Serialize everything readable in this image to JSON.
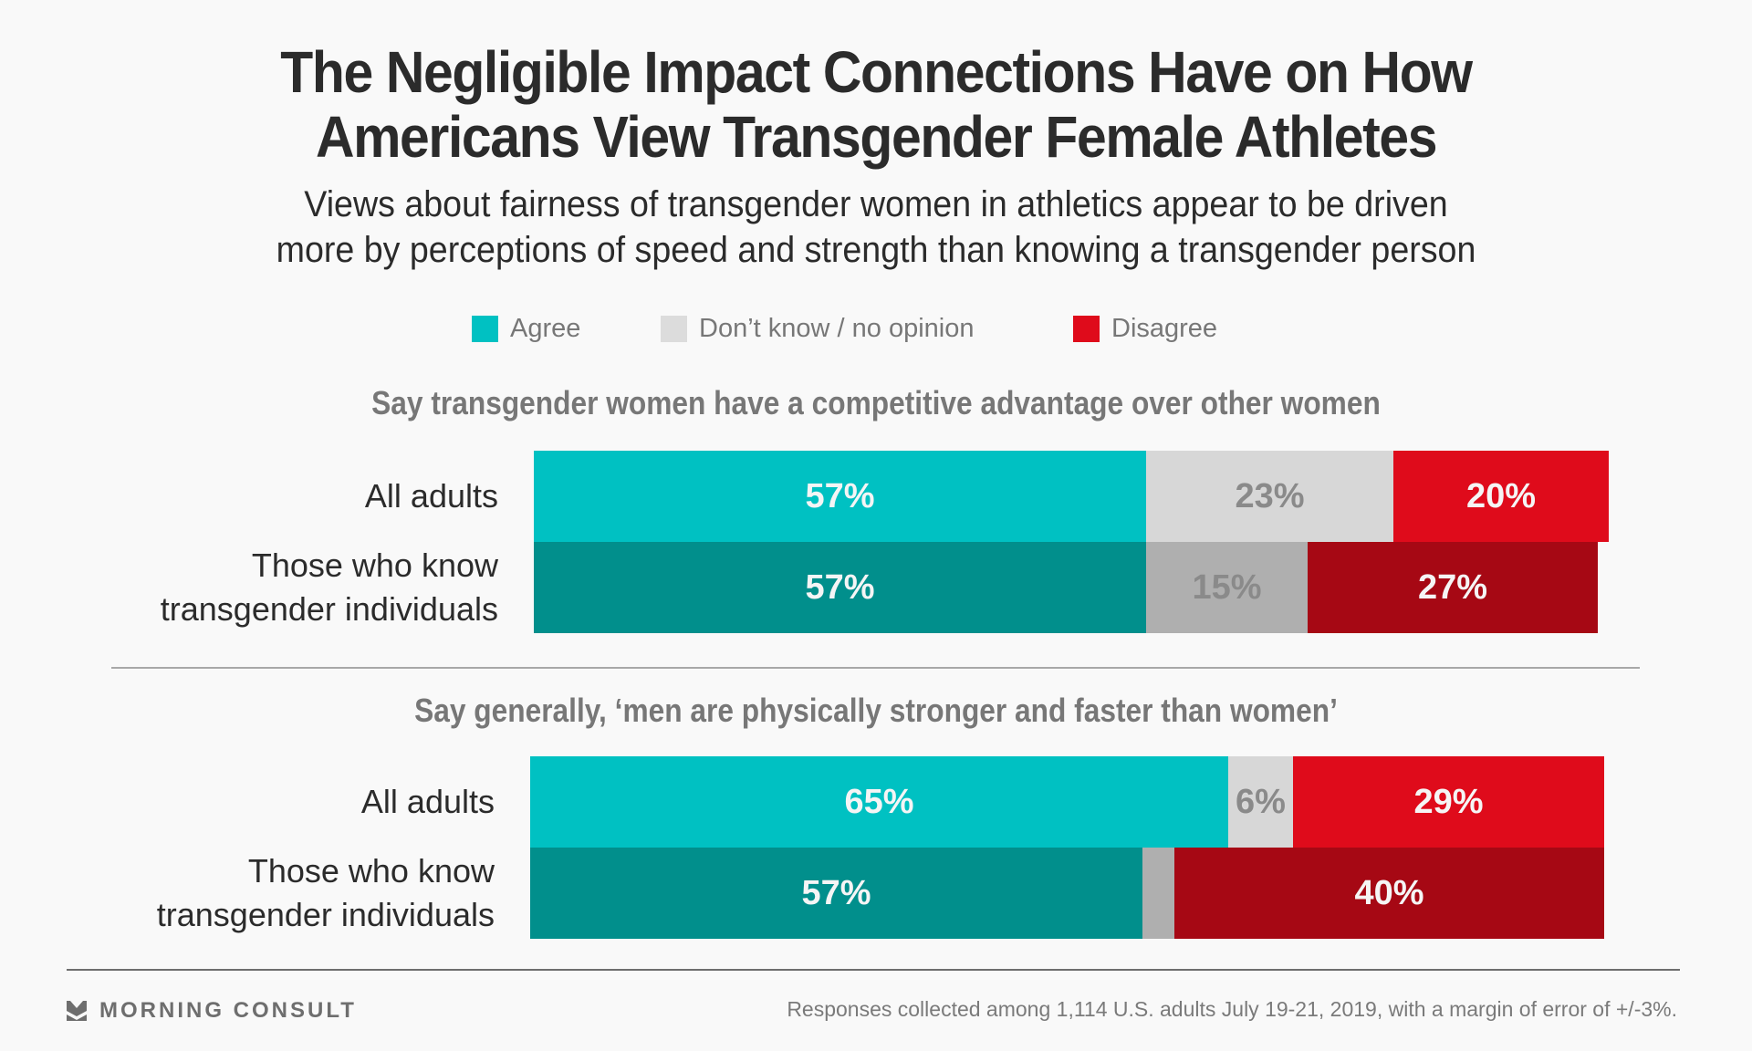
{
  "header": {
    "title_line1": "The Negligible Impact Connections Have on How",
    "title_line2": "Americans View Transgender Female Athletes",
    "subtitle_line1": "Views about fairness of transgender women in athletics appear to be driven",
    "subtitle_line2": "more by perceptions of speed and strength than knowing a transgender person"
  },
  "legend": [
    {
      "label": "Agree",
      "color": "#00c1c2"
    },
    {
      "label": "Don’t know / no opinion",
      "color": "#dcdcdc"
    },
    {
      "label": "Disagree",
      "color": "#df0b1b"
    }
  ],
  "colors": {
    "agree_light": "#00c1c2",
    "agree_dark": "#018f8c",
    "dk_light": "#d7d7d7",
    "dk_dark": "#afafaf",
    "disagree_light": "#df0b1b",
    "disagree_dark": "#a60814",
    "label_light": "#f5f5f5",
    "label_gray": "#8a8a8a"
  },
  "chart_data": [
    {
      "type": "bar",
      "orientation": "horizontal",
      "stacked": true,
      "title": "Say transgender women have a competitive advantage over other women",
      "categories": [
        "All adults",
        "Those who know transgender individuals"
      ],
      "category_lines": [
        [
          "All adults"
        ],
        [
          "Those who know",
          "transgender individuals"
        ]
      ],
      "series": [
        {
          "name": "Agree",
          "values": [
            57,
            57
          ]
        },
        {
          "name": "Don’t know / no opinion",
          "values": [
            23,
            15
          ]
        },
        {
          "name": "Disagree",
          "values": [
            20,
            27
          ]
        }
      ],
      "data_labels": [
        [
          "57%",
          "23%",
          "20%"
        ],
        [
          "57%",
          "15%",
          "27%"
        ]
      ],
      "xlim": [
        0,
        100
      ],
      "grid": false,
      "legend": "top-center"
    },
    {
      "type": "bar",
      "orientation": "horizontal",
      "stacked": true,
      "title": "Say generally, ‘men are physically stronger and faster than women’",
      "categories": [
        "All adults",
        "Those who know transgender individuals"
      ],
      "category_lines": [
        [
          "All adults"
        ],
        [
          "Those who know",
          "transgender individuals"
        ]
      ],
      "series": [
        {
          "name": "Agree",
          "values": [
            65,
            57
          ]
        },
        {
          "name": "Don’t know / no opinion",
          "values": [
            6,
            3
          ]
        },
        {
          "name": "Disagree",
          "values": [
            29,
            40
          ]
        }
      ],
      "data_labels": [
        [
          "65%",
          "6%",
          "29%"
        ],
        [
          "57%",
          "",
          "40%"
        ]
      ],
      "xlim": [
        0,
        100
      ],
      "grid": false,
      "legend": "top-center"
    }
  ],
  "footer": {
    "brand": "MORNING CONSULT",
    "source": "Responses collected among 1,114 U.S. adults July 19-21, 2019, with a margin of error of +/-3%."
  }
}
